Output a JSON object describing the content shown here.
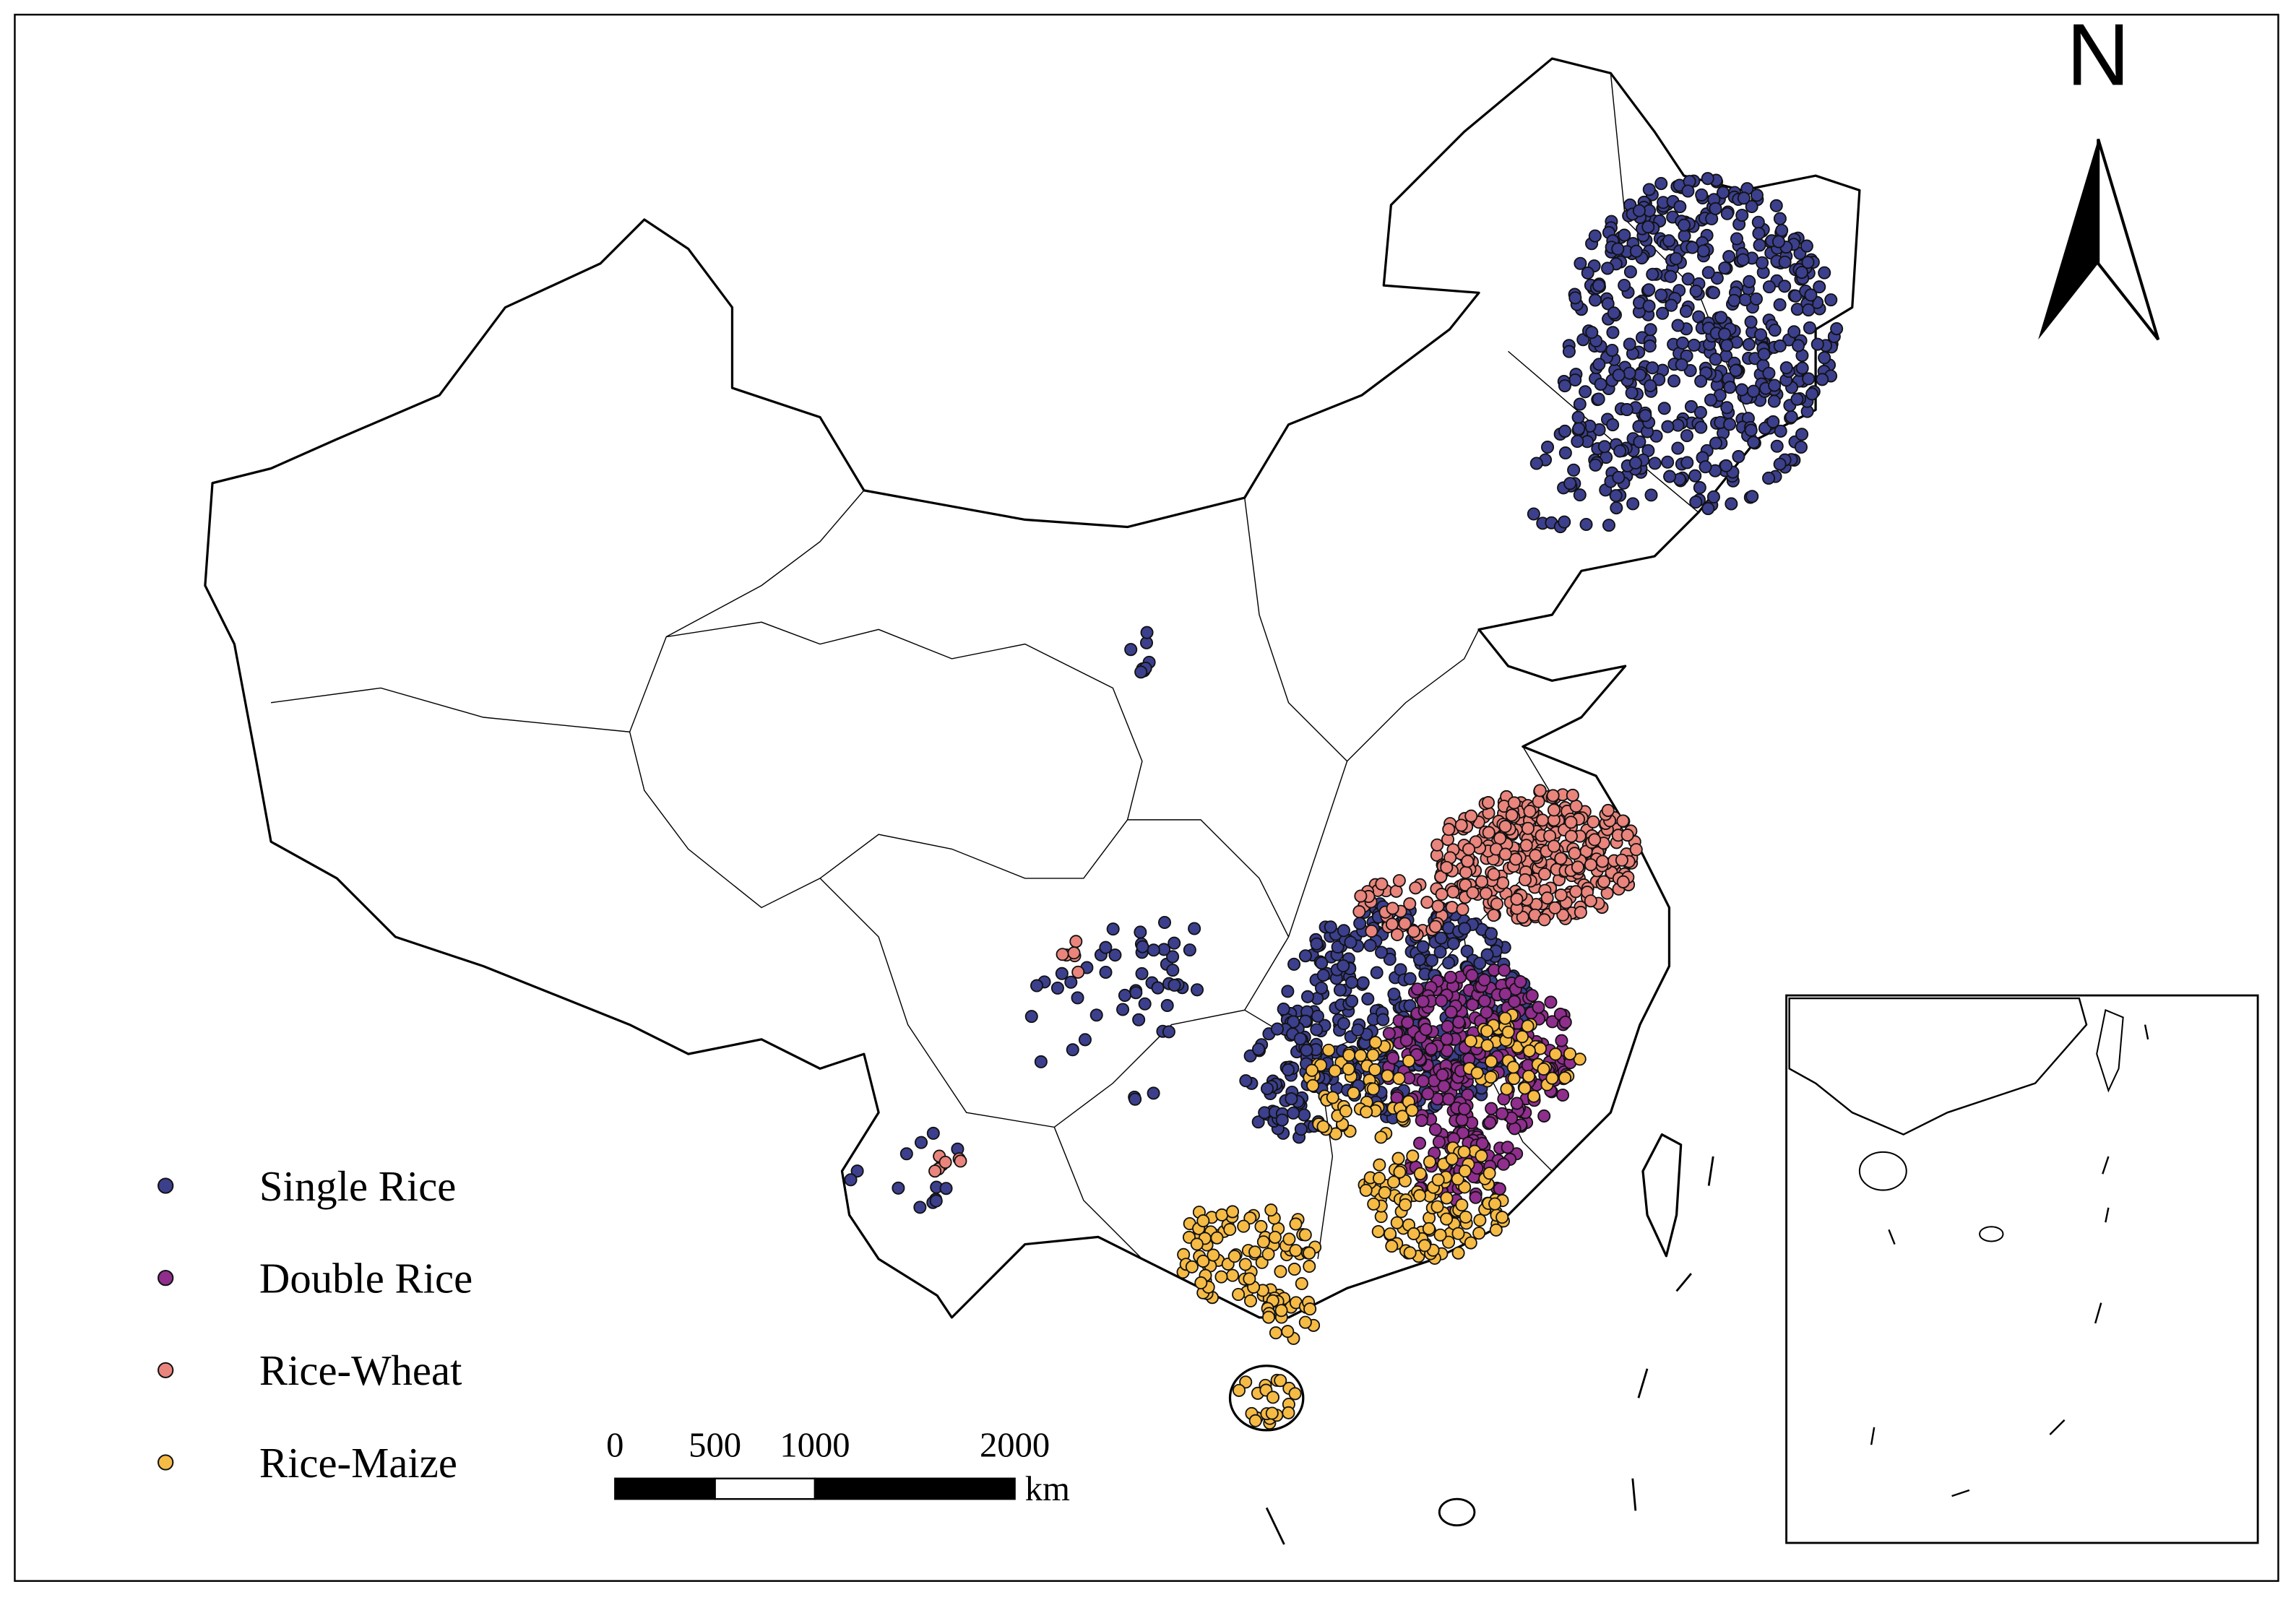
{
  "legend": {
    "items": [
      {
        "name": "Single Rice",
        "color": "#3b3f8c"
      },
      {
        "name": "Double Rice",
        "color": "#8f2e8c"
      },
      {
        "name": "Rice-Wheat",
        "color": "#e9857c"
      },
      {
        "name": "Rice-Maize",
        "color": "#f6bb45"
      }
    ]
  },
  "scale_bar": {
    "ticks": [
      0,
      500,
      1000,
      2000
    ],
    "unit": "km"
  },
  "north_arrow": {
    "label": "N"
  }
}
